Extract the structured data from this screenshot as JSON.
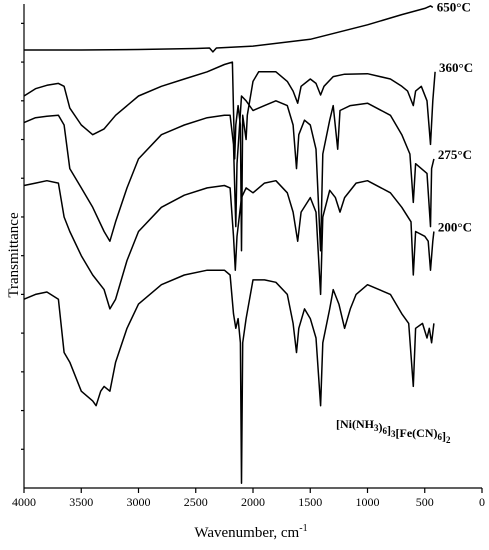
{
  "chart_data": {
    "type": "line",
    "xlabel": "Wavenumber, cm",
    "xlabel_sup": "-1",
    "ylabel": "Transmittance",
    "x_ticks": [
      4000,
      3500,
      3000,
      2500,
      2000,
      1500,
      1000,
      500,
      0
    ],
    "xlim": [
      4000,
      0
    ],
    "x_direction": "reversed",
    "ylim": [
      0,
      1
    ],
    "y_ticks_labeled": false,
    "grid": false,
    "legend": "labels at curve ends (right)",
    "annotation": {
      "text": "[Ni(NH3)6]3[Fe(CN)6]2",
      "parts": [
        {
          "t": "[Ni(NH"
        },
        {
          "t": "3",
          "sub": true
        },
        {
          "t": ")"
        },
        {
          "t": "6",
          "sub": true
        },
        {
          "t": "]"
        },
        {
          "t": "3",
          "sub": true
        },
        {
          "t": "[Fe(CN)"
        },
        {
          "t": "6",
          "sub": true
        },
        {
          "t": "]"
        },
        {
          "t": "2",
          "sub": true
        }
      ]
    },
    "series": [
      {
        "name": "650°C",
        "points": [
          [
            4000,
            0.905
          ],
          [
            3500,
            0.905
          ],
          [
            3000,
            0.906
          ],
          [
            2500,
            0.908
          ],
          [
            2380,
            0.909
          ],
          [
            2350,
            0.901
          ],
          [
            2320,
            0.909
          ],
          [
            2000,
            0.913
          ],
          [
            1500,
            0.927
          ],
          [
            1000,
            0.957
          ],
          [
            700,
            0.978
          ],
          [
            500,
            0.991
          ],
          [
            450,
            0.996
          ],
          [
            430,
            0.993
          ]
        ]
      },
      {
        "name": "360°C",
        "points": [
          [
            4000,
            0.81
          ],
          [
            3900,
            0.825
          ],
          [
            3800,
            0.832
          ],
          [
            3700,
            0.836
          ],
          [
            3650,
            0.83
          ],
          [
            3600,
            0.785
          ],
          [
            3500,
            0.75
          ],
          [
            3400,
            0.73
          ],
          [
            3300,
            0.742
          ],
          [
            3200,
            0.77
          ],
          [
            3000,
            0.81
          ],
          [
            2800,
            0.83
          ],
          [
            2600,
            0.845
          ],
          [
            2400,
            0.86
          ],
          [
            2250,
            0.875
          ],
          [
            2180,
            0.88
          ],
          [
            2170,
            0.78
          ],
          [
            2160,
            0.68
          ],
          [
            2150,
            0.75
          ],
          [
            2130,
            0.79
          ],
          [
            2110,
            0.75
          ],
          [
            2100,
            0.49
          ],
          [
            2090,
            0.77
          ],
          [
            2060,
            0.72
          ],
          [
            2050,
            0.77
          ],
          [
            2000,
            0.84
          ],
          [
            1950,
            0.86
          ],
          [
            1900,
            0.86
          ],
          [
            1800,
            0.86
          ],
          [
            1700,
            0.84
          ],
          [
            1650,
            0.82
          ],
          [
            1610,
            0.795
          ],
          [
            1580,
            0.83
          ],
          [
            1500,
            0.845
          ],
          [
            1450,
            0.836
          ],
          [
            1410,
            0.812
          ],
          [
            1380,
            0.83
          ],
          [
            1300,
            0.85
          ],
          [
            1200,
            0.855
          ],
          [
            1000,
            0.856
          ],
          [
            800,
            0.845
          ],
          [
            700,
            0.83
          ],
          [
            650,
            0.82
          ],
          [
            600,
            0.79
          ],
          [
            580,
            0.82
          ],
          [
            530,
            0.83
          ],
          [
            480,
            0.8
          ],
          [
            450,
            0.71
          ],
          [
            430,
            0.8
          ],
          [
            410,
            0.86
          ]
        ]
      },
      {
        "name": "275°C",
        "points": [
          [
            4000,
            0.755
          ],
          [
            3900,
            0.765
          ],
          [
            3800,
            0.768
          ],
          [
            3700,
            0.77
          ],
          [
            3650,
            0.75
          ],
          [
            3600,
            0.66
          ],
          [
            3500,
            0.62
          ],
          [
            3400,
            0.58
          ],
          [
            3300,
            0.53
          ],
          [
            3250,
            0.51
          ],
          [
            3200,
            0.55
          ],
          [
            3100,
            0.62
          ],
          [
            3000,
            0.68
          ],
          [
            2800,
            0.73
          ],
          [
            2600,
            0.75
          ],
          [
            2400,
            0.765
          ],
          [
            2250,
            0.77
          ],
          [
            2200,
            0.77
          ],
          [
            2170,
            0.71
          ],
          [
            2150,
            0.54
          ],
          [
            2140,
            0.67
          ],
          [
            2120,
            0.74
          ],
          [
            2100,
            0.81
          ],
          [
            2060,
            0.8
          ],
          [
            2000,
            0.78
          ],
          [
            1900,
            0.79
          ],
          [
            1800,
            0.8
          ],
          [
            1700,
            0.79
          ],
          [
            1650,
            0.75
          ],
          [
            1620,
            0.66
          ],
          [
            1600,
            0.73
          ],
          [
            1550,
            0.76
          ],
          [
            1500,
            0.75
          ],
          [
            1450,
            0.7
          ],
          [
            1410,
            0.49
          ],
          [
            1390,
            0.69
          ],
          [
            1330,
            0.76
          ],
          [
            1300,
            0.79
          ],
          [
            1260,
            0.7
          ],
          [
            1240,
            0.78
          ],
          [
            1150,
            0.79
          ],
          [
            1000,
            0.795
          ],
          [
            800,
            0.77
          ],
          [
            700,
            0.73
          ],
          [
            630,
            0.69
          ],
          [
            600,
            0.59
          ],
          [
            580,
            0.67
          ],
          [
            530,
            0.66
          ],
          [
            480,
            0.65
          ],
          [
            450,
            0.54
          ],
          [
            440,
            0.66
          ],
          [
            420,
            0.68
          ]
        ]
      },
      {
        "name": "200°C",
        "points": [
          [
            4000,
            0.625
          ],
          [
            3900,
            0.63
          ],
          [
            3800,
            0.635
          ],
          [
            3700,
            0.63
          ],
          [
            3650,
            0.56
          ],
          [
            3600,
            0.53
          ],
          [
            3500,
            0.48
          ],
          [
            3400,
            0.44
          ],
          [
            3300,
            0.41
          ],
          [
            3250,
            0.37
          ],
          [
            3200,
            0.39
          ],
          [
            3100,
            0.47
          ],
          [
            3000,
            0.53
          ],
          [
            2800,
            0.58
          ],
          [
            2600,
            0.605
          ],
          [
            2400,
            0.62
          ],
          [
            2250,
            0.625
          ],
          [
            2200,
            0.62
          ],
          [
            2170,
            0.52
          ],
          [
            2155,
            0.45
          ],
          [
            2140,
            0.52
          ],
          [
            2100,
            0.6
          ],
          [
            2060,
            0.62
          ],
          [
            2000,
            0.61
          ],
          [
            1900,
            0.63
          ],
          [
            1800,
            0.635
          ],
          [
            1700,
            0.61
          ],
          [
            1650,
            0.57
          ],
          [
            1610,
            0.51
          ],
          [
            1580,
            0.57
          ],
          [
            1500,
            0.6
          ],
          [
            1450,
            0.57
          ],
          [
            1410,
            0.4
          ],
          [
            1390,
            0.56
          ],
          [
            1330,
            0.615
          ],
          [
            1280,
            0.6
          ],
          [
            1240,
            0.57
          ],
          [
            1200,
            0.6
          ],
          [
            1100,
            0.63
          ],
          [
            1000,
            0.635
          ],
          [
            800,
            0.61
          ],
          [
            700,
            0.58
          ],
          [
            620,
            0.55
          ],
          [
            600,
            0.44
          ],
          [
            580,
            0.53
          ],
          [
            500,
            0.52
          ],
          [
            470,
            0.51
          ],
          [
            450,
            0.45
          ],
          [
            430,
            0.51
          ],
          [
            420,
            0.53
          ]
        ]
      },
      {
        "name": "[Ni(NH3)6]3[Fe(CN)6]2",
        "points": [
          [
            4000,
            0.39
          ],
          [
            3900,
            0.4
          ],
          [
            3800,
            0.405
          ],
          [
            3700,
            0.39
          ],
          [
            3650,
            0.28
          ],
          [
            3600,
            0.26
          ],
          [
            3500,
            0.2
          ],
          [
            3400,
            0.18
          ],
          [
            3370,
            0.17
          ],
          [
            3330,
            0.2
          ],
          [
            3300,
            0.21
          ],
          [
            3250,
            0.2
          ],
          [
            3200,
            0.26
          ],
          [
            3100,
            0.33
          ],
          [
            3000,
            0.38
          ],
          [
            2800,
            0.42
          ],
          [
            2600,
            0.44
          ],
          [
            2400,
            0.45
          ],
          [
            2250,
            0.45
          ],
          [
            2200,
            0.44
          ],
          [
            2170,
            0.36
          ],
          [
            2150,
            0.33
          ],
          [
            2130,
            0.35
          ],
          [
            2110,
            0.3
          ],
          [
            2100,
            0.01
          ],
          [
            2090,
            0.3
          ],
          [
            2060,
            0.35
          ],
          [
            2000,
            0.43
          ],
          [
            1900,
            0.43
          ],
          [
            1800,
            0.425
          ],
          [
            1700,
            0.4
          ],
          [
            1650,
            0.34
          ],
          [
            1620,
            0.28
          ],
          [
            1600,
            0.33
          ],
          [
            1550,
            0.37
          ],
          [
            1500,
            0.35
          ],
          [
            1450,
            0.31
          ],
          [
            1410,
            0.17
          ],
          [
            1390,
            0.3
          ],
          [
            1330,
            0.37
          ],
          [
            1300,
            0.41
          ],
          [
            1250,
            0.38
          ],
          [
            1200,
            0.33
          ],
          [
            1150,
            0.37
          ],
          [
            1100,
            0.4
          ],
          [
            1000,
            0.42
          ],
          [
            800,
            0.4
          ],
          [
            700,
            0.36
          ],
          [
            640,
            0.34
          ],
          [
            600,
            0.21
          ],
          [
            580,
            0.33
          ],
          [
            520,
            0.34
          ],
          [
            480,
            0.31
          ],
          [
            460,
            0.33
          ],
          [
            440,
            0.3
          ],
          [
            420,
            0.34
          ]
        ]
      }
    ]
  }
}
